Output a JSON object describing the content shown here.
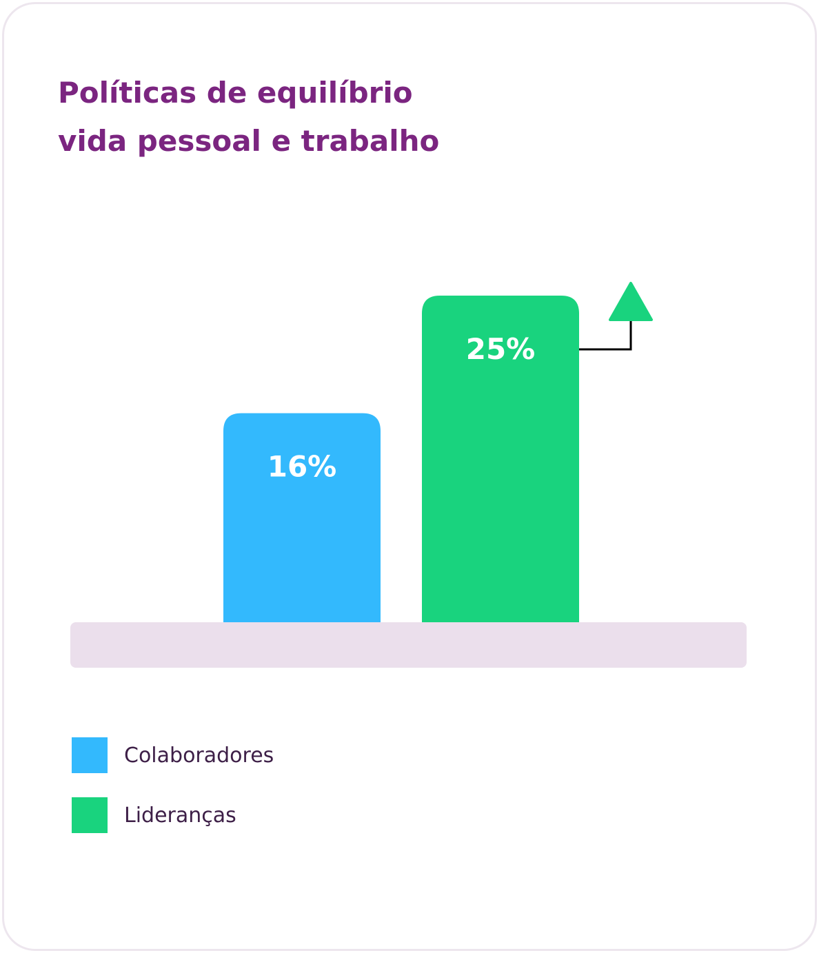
{
  "title_lines": [
    "Políticas de equilíbrio",
    "vida pessoal e trabalho"
  ],
  "colors": {
    "title": "#7b2580",
    "colaboradores": "#33b9fd",
    "liderancas": "#19d37e",
    "baseline": "#ebdfec",
    "arrow": "#19d37e",
    "connector": "#000000"
  },
  "chart_data": {
    "type": "bar",
    "title": "Políticas de equilíbrio vida pessoal e trabalho",
    "categories": [
      "Colaboradores",
      "Lideranças"
    ],
    "values": [
      16,
      25
    ],
    "value_labels": [
      "16%",
      "25%"
    ],
    "ylim": [
      0,
      30
    ],
    "grid": false,
    "legend_position": "bottom-left",
    "annotation": "up-arrow on Lideranças bar"
  },
  "legend": [
    {
      "label": "Colaboradores",
      "color": "#33b9fd"
    },
    {
      "label": "Lideranças",
      "color": "#19d37e"
    }
  ],
  "icons": [
    "up-arrow-icon"
  ]
}
